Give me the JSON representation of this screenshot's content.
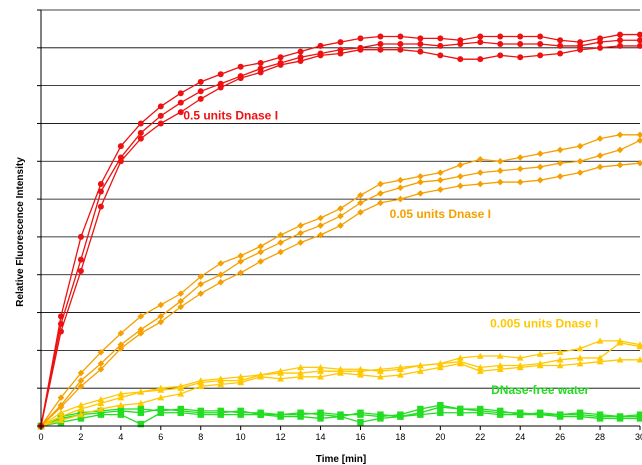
{
  "chart_data": {
    "type": "line",
    "title": "",
    "xlabel": "Time [min]",
    "ylabel": "Relative Fluorescence Intensity",
    "xlim": [
      0,
      30
    ],
    "ylim": [
      0,
      11
    ],
    "x_ticks": [
      0,
      2,
      4,
      6,
      8,
      10,
      12,
      14,
      16,
      18,
      20,
      22,
      24,
      26,
      28,
      30
    ],
    "grid": "horizontal",
    "legend": "none",
    "groups": [
      {
        "label": "0.5 units Dnase I",
        "color": "#ee1111",
        "marker": "circle",
        "label_at": [
          9.5,
          8.1
        ],
        "series": [
          {
            "x": [
              0,
              1,
              2,
              3,
              4,
              5,
              6,
              7,
              8,
              9,
              10,
              11,
              12,
              13,
              14,
              15,
              16,
              17,
              18,
              19,
              20,
              21,
              22,
              23,
              24,
              25,
              26,
              27,
              28,
              29,
              30
            ],
            "values": [
              0,
              2.9,
              5.0,
              6.4,
              7.4,
              8.0,
              8.45,
              8.8,
              9.1,
              9.3,
              9.5,
              9.6,
              9.75,
              9.9,
              10.05,
              10.15,
              10.25,
              10.3,
              10.3,
              10.25,
              10.25,
              10.2,
              10.3,
              10.3,
              10.3,
              10.3,
              10.2,
              10.15,
              10.25,
              10.35,
              10.35
            ]
          },
          {
            "x": [
              0,
              1,
              2,
              3,
              4,
              5,
              6,
              7,
              8,
              9,
              10,
              11,
              12,
              13,
              14,
              15,
              16,
              17,
              18,
              19,
              20,
              21,
              22,
              23,
              24,
              25,
              26,
              27,
              28,
              29,
              30
            ],
            "values": [
              0,
              2.7,
              4.4,
              6.2,
              7.1,
              7.75,
              8.2,
              8.55,
              8.85,
              9.05,
              9.25,
              9.45,
              9.6,
              9.75,
              9.85,
              9.95,
              10.0,
              10.1,
              10.1,
              10.1,
              10.05,
              10.1,
              10.15,
              10.1,
              10.1,
              10.1,
              10.05,
              10.05,
              10.15,
              10.2,
              10.2
            ]
          },
          {
            "x": [
              0,
              1,
              2,
              3,
              4,
              5,
              6,
              7,
              8,
              9,
              10,
              11,
              12,
              13,
              14,
              15,
              16,
              17,
              18,
              19,
              20,
              21,
              22,
              23,
              24,
              25,
              26,
              27,
              28,
              29,
              30
            ],
            "values": [
              0,
              2.5,
              4.1,
              5.8,
              7.0,
              7.6,
              8.0,
              8.3,
              8.65,
              8.95,
              9.2,
              9.35,
              9.55,
              9.65,
              9.8,
              9.85,
              9.95,
              9.95,
              9.95,
              9.9,
              9.8,
              9.7,
              9.7,
              9.8,
              9.75,
              9.8,
              9.85,
              9.95,
              10.0,
              10.05,
              10.05
            ]
          }
        ]
      },
      {
        "label": "0.05 units Dnase I",
        "color": "#f5a000",
        "marker": "diamond",
        "label_at": [
          20,
          5.5
        ],
        "series": [
          {
            "x": [
              0,
              1,
              2,
              3,
              4,
              5,
              6,
              7,
              8,
              9,
              10,
              11,
              12,
              13,
              14,
              15,
              16,
              17,
              18,
              19,
              20,
              21,
              22,
              23,
              24,
              25,
              26,
              27,
              28,
              29,
              30
            ],
            "values": [
              0,
              0.75,
              1.4,
              1.95,
              2.45,
              2.9,
              3.2,
              3.5,
              3.95,
              4.3,
              4.5,
              4.75,
              5.05,
              5.3,
              5.5,
              5.75,
              6.1,
              6.4,
              6.5,
              6.6,
              6.7,
              6.9,
              7.05,
              7.0,
              7.1,
              7.2,
              7.3,
              7.4,
              7.6,
              7.7,
              7.7
            ]
          },
          {
            "x": [
              0,
              1,
              2,
              3,
              4,
              5,
              6,
              7,
              8,
              9,
              10,
              11,
              12,
              13,
              14,
              15,
              16,
              17,
              18,
              19,
              20,
              21,
              22,
              23,
              24,
              25,
              26,
              27,
              28,
              29,
              30
            ],
            "values": [
              0,
              0.55,
              1.2,
              1.65,
              2.15,
              2.55,
              2.9,
              3.3,
              3.75,
              4.0,
              4.35,
              4.6,
              4.85,
              5.1,
              5.3,
              5.55,
              5.9,
              6.15,
              6.3,
              6.45,
              6.5,
              6.6,
              6.7,
              6.75,
              6.8,
              6.85,
              6.95,
              7.0,
              7.15,
              7.3,
              7.55
            ]
          },
          {
            "x": [
              0,
              1,
              2,
              3,
              4,
              5,
              6,
              7,
              8,
              9,
              10,
              11,
              12,
              13,
              14,
              15,
              16,
              17,
              18,
              19,
              20,
              21,
              22,
              23,
              24,
              25,
              26,
              27,
              28,
              29,
              30
            ],
            "values": [
              0,
              0.5,
              1.05,
              1.5,
              2.05,
              2.45,
              2.75,
              3.15,
              3.5,
              3.8,
              4.05,
              4.35,
              4.6,
              4.85,
              5.05,
              5.3,
              5.65,
              5.9,
              6.0,
              6.15,
              6.25,
              6.35,
              6.4,
              6.45,
              6.45,
              6.5,
              6.6,
              6.7,
              6.85,
              6.9,
              6.95
            ]
          }
        ]
      },
      {
        "label": "0.005 units Dnase I",
        "color": "#ffc800",
        "marker": "triangle",
        "label_at": [
          25.2,
          2.6
        ],
        "series": [
          {
            "x": [
              0,
              1,
              2,
              3,
              4,
              5,
              6,
              7,
              8,
              9,
              10,
              11,
              12,
              13,
              14,
              15,
              16,
              17,
              18,
              19,
              20,
              21,
              22,
              23,
              24,
              25,
              26,
              27,
              28,
              29,
              30
            ],
            "values": [
              0,
              0.35,
              0.55,
              0.7,
              0.85,
              0.9,
              1.0,
              1.05,
              1.2,
              1.25,
              1.3,
              1.35,
              1.4,
              1.4,
              1.45,
              1.45,
              1.45,
              1.5,
              1.55,
              1.6,
              1.65,
              1.8,
              1.85,
              1.85,
              1.8,
              1.9,
              1.95,
              2.05,
              2.25,
              2.25,
              2.15
            ]
          },
          {
            "x": [
              0,
              1,
              2,
              3,
              4,
              5,
              6,
              7,
              8,
              9,
              10,
              11,
              12,
              13,
              14,
              15,
              16,
              17,
              18,
              19,
              20,
              21,
              22,
              23,
              24,
              25,
              26,
              27,
              28,
              29,
              30
            ],
            "values": [
              0,
              0.25,
              0.45,
              0.6,
              0.75,
              0.9,
              0.95,
              1.0,
              1.15,
              1.2,
              1.2,
              1.35,
              1.45,
              1.55,
              1.55,
              1.5,
              1.5,
              1.45,
              1.5,
              1.6,
              1.65,
              1.7,
              1.55,
              1.6,
              1.6,
              1.65,
              1.75,
              1.8,
              1.8,
              2.2,
              2.1
            ]
          },
          {
            "x": [
              0,
              1,
              2,
              3,
              4,
              5,
              6,
              7,
              8,
              9,
              10,
              11,
              12,
              13,
              14,
              15,
              16,
              17,
              18,
              19,
              20,
              21,
              22,
              23,
              24,
              25,
              26,
              27,
              28,
              29,
              30
            ],
            "values": [
              0,
              0.15,
              0.3,
              0.45,
              0.55,
              0.6,
              0.75,
              0.85,
              1.05,
              1.1,
              1.15,
              1.3,
              1.25,
              1.3,
              1.3,
              1.4,
              1.35,
              1.3,
              1.35,
              1.45,
              1.55,
              1.65,
              1.45,
              1.5,
              1.55,
              1.6,
              1.6,
              1.65,
              1.7,
              1.75,
              1.75
            ]
          }
        ]
      },
      {
        "label": "DNase-free water",
        "color": "#22dd22",
        "marker": "square",
        "label_at": [
          25,
          0.85
        ],
        "series": [
          {
            "x": [
              0,
              1,
              2,
              3,
              4,
              5,
              6,
              7,
              8,
              9,
              10,
              11,
              12,
              13,
              14,
              15,
              16,
              17,
              18,
              19,
              20,
              21,
              22,
              23,
              24,
              25,
              26,
              27,
              28,
              29,
              30
            ],
            "values": [
              0,
              0.25,
              0.35,
              0.4,
              0.45,
              0.45,
              0.4,
              0.45,
              0.4,
              0.4,
              0.35,
              0.35,
              0.3,
              0.3,
              0.35,
              0.3,
              0.3,
              0.25,
              0.3,
              0.45,
              0.55,
              0.45,
              0.4,
              0.35,
              0.35,
              0.3,
              0.3,
              0.3,
              0.25,
              0.25,
              0.25
            ]
          },
          {
            "x": [
              0,
              1,
              2,
              3,
              4,
              5,
              6,
              7,
              8,
              9,
              10,
              11,
              12,
              13,
              14,
              15,
              16,
              17,
              18,
              19,
              20,
              21,
              22,
              23,
              24,
              25,
              26,
              27,
              28,
              29,
              30
            ],
            "values": [
              0,
              0.2,
              0.3,
              0.35,
              0.4,
              0.35,
              0.45,
              0.4,
              0.35,
              0.35,
              0.4,
              0.3,
              0.3,
              0.35,
              0.3,
              0.25,
              0.35,
              0.3,
              0.25,
              0.35,
              0.5,
              0.45,
              0.45,
              0.4,
              0.3,
              0.35,
              0.3,
              0.35,
              0.3,
              0.25,
              0.3
            ]
          },
          {
            "x": [
              0,
              1,
              2,
              3,
              4,
              5,
              6,
              7,
              8,
              9,
              10,
              11,
              12,
              13,
              14,
              15,
              16,
              17,
              18,
              19,
              20,
              21,
              22,
              23,
              24,
              25,
              26,
              27,
              28,
              29,
              30
            ],
            "values": [
              0,
              0.1,
              0.2,
              0.3,
              0.3,
              0.05,
              0.35,
              0.35,
              0.3,
              0.3,
              0.3,
              0.3,
              0.25,
              0.25,
              0.2,
              0.25,
              0.1,
              0.2,
              0.25,
              0.3,
              0.35,
              0.35,
              0.35,
              0.3,
              0.3,
              0.3,
              0.25,
              0.25,
              0.2,
              0.2,
              0.2
            ]
          }
        ]
      }
    ]
  }
}
